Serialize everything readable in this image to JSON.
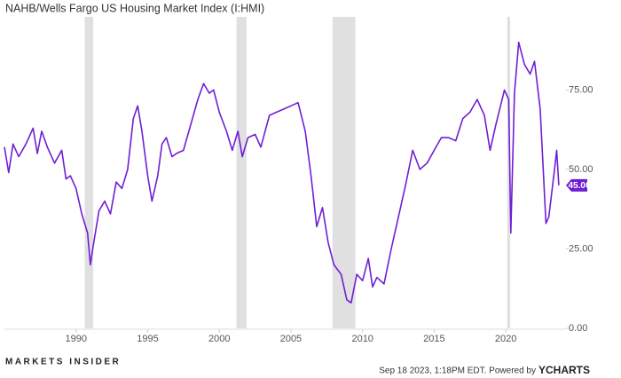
{
  "chart_data": {
    "type": "line",
    "title": "NAHB/Wells Fargo US Housing Market Index (I:HMI)",
    "x": [
      1985.0,
      1985.3,
      1985.6,
      1986.0,
      1986.5,
      1987.0,
      1987.3,
      1987.6,
      1988.0,
      1988.5,
      1989.0,
      1989.3,
      1989.6,
      1990.0,
      1990.4,
      1990.8,
      1991.0,
      1991.2,
      1991.6,
      1992.0,
      1992.4,
      1992.8,
      1993.2,
      1993.6,
      1994.0,
      1994.3,
      1994.6,
      1995.0,
      1995.3,
      1995.7,
      1996.0,
      1996.3,
      1996.7,
      1997.0,
      1997.5,
      1998.0,
      1998.5,
      1998.9,
      1999.3,
      1999.6,
      2000.0,
      2000.5,
      2000.9,
      2001.3,
      2001.6,
      2002.0,
      2002.5,
      2002.9,
      2003.5,
      2004.0,
      2004.5,
      2005.0,
      2005.5,
      2006.0,
      2006.4,
      2006.8,
      2007.2,
      2007.6,
      2008.0,
      2008.5,
      2008.9,
      2009.2,
      2009.6,
      2010.0,
      2010.4,
      2010.7,
      2011.0,
      2011.5,
      2012.0,
      2012.5,
      2013.0,
      2013.5,
      2014.0,
      2014.5,
      2015.0,
      2015.5,
      2016.0,
      2016.5,
      2017.0,
      2017.5,
      2018.0,
      2018.5,
      2018.9,
      2019.3,
      2019.9,
      2020.2,
      2020.35,
      2020.6,
      2020.9,
      2021.3,
      2021.7,
      2022.0,
      2022.4,
      2022.8,
      2023.0,
      2023.4,
      2023.55,
      2023.7
    ],
    "series": [
      {
        "name": "I:HMI",
        "color": "#6f1fd4",
        "values": [
          57,
          49,
          58,
          54,
          58,
          63,
          55,
          62,
          57,
          52,
          56,
          47,
          48,
          44,
          36,
          30,
          20,
          26,
          37,
          40,
          36,
          46,
          44,
          50,
          66,
          70,
          62,
          48,
          40,
          48,
          58,
          60,
          54,
          55,
          56,
          64,
          72,
          77,
          74,
          75,
          68,
          62,
          56,
          62,
          54,
          60,
          61,
          57,
          67,
          68,
          69,
          70,
          71,
          62,
          48,
          32,
          38,
          27,
          20,
          17,
          9,
          8,
          17,
          15,
          22,
          13,
          16,
          14,
          25,
          35,
          45,
          56,
          50,
          52,
          56,
          60,
          60,
          59,
          66,
          68,
          72,
          67,
          56,
          64,
          75,
          72,
          30,
          74,
          90,
          83,
          80,
          84,
          69,
          33,
          35,
          50,
          56,
          45
        ]
      }
    ],
    "xlim": [
      1985,
      2024.2
    ],
    "xticks": [
      1990,
      1995,
      2000,
      2005,
      2010,
      2015,
      2020
    ],
    "ylim": [
      0,
      98
    ],
    "yticks": [
      {
        "value": 0,
        "label": "0.00"
      },
      {
        "value": 25,
        "label": "25.00"
      },
      {
        "value": 50,
        "label": "50.00"
      },
      {
        "value": 75,
        "label": "75.00"
      }
    ],
    "grid": false,
    "recessions": [
      [
        1990.6,
        1991.2
      ],
      [
        2001.2,
        2001.9
      ],
      [
        2007.9,
        2009.5
      ],
      [
        2020.1,
        2020.3
      ]
    ],
    "last_value": {
      "value": 45,
      "label": "45.00"
    },
    "footer": {
      "logo": "MARKETS INSIDER",
      "credit": "Sep 18 2023, 1:18PM EDT. Powered by",
      "brand": "YCHARTS"
    }
  }
}
